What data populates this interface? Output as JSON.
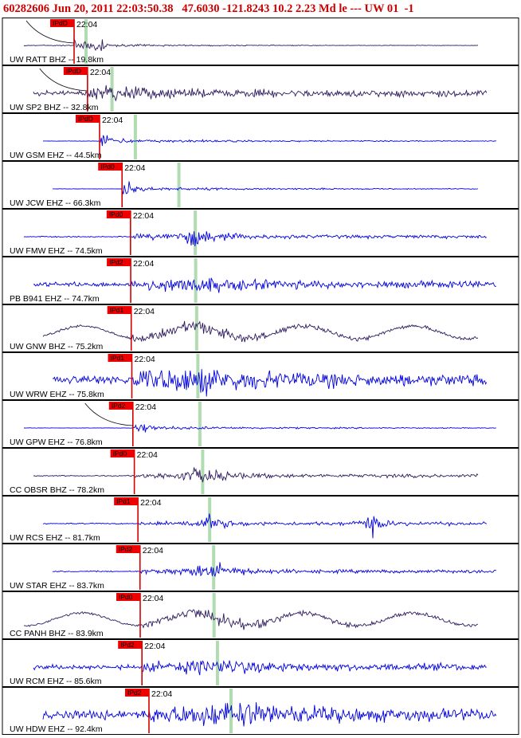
{
  "header": {
    "text": "60282606 Jun 20, 2011 22:03:50.38   47.6030 -121.8243 10.2 2.23 Md le --- UW 01  -1"
  },
  "colors": {
    "header": "#cc0000",
    "vertical_component_trace": "#2e1a5e",
    "short_period_trace": "#0000dd",
    "pick_line": "#d40000",
    "pick_flag": "#ee0000",
    "s_pick_band": "#a8d8a8",
    "travel_time_curve": "#000000"
  },
  "chart_data": {
    "type": "line",
    "title": "60282606 Jun 20, 2011 22:03:50.38   47.6030 -121.8243 10.2 2.23 Md le --- UW 01  -1",
    "time_tick_label": "22:04",
    "traces": [
      {
        "label": "UW RATT BHZ -- 19.8km",
        "distance_km": 19.8,
        "color": "#2e1a5e",
        "pick": "IPdD",
        "style": "rattle"
      },
      {
        "label": "UW SP2 BHZ -- 32.8km",
        "distance_km": 32.8,
        "color": "#2e1a5e",
        "pick": "IPdD",
        "style": "noisy"
      },
      {
        "label": "UW GSM EHZ -- 44.5km",
        "distance_km": 44.5,
        "color": "#0000dd",
        "pick": "IPdD",
        "style": "quiet"
      },
      {
        "label": "UW JCW EHZ -- 66.3km",
        "distance_km": 66.3,
        "color": "#0000dd",
        "pick": "IPd0",
        "style": "quiet"
      },
      {
        "label": "UW FMW EHZ -- 74.5km",
        "distance_km": 74.5,
        "color": "#0000dd",
        "pick": "IPd0",
        "style": "event"
      },
      {
        "label": "PB B941 EHZ -- 74.7km",
        "distance_km": 74.7,
        "color": "#0000dd",
        "pick": "IPd2",
        "style": "noisy"
      },
      {
        "label": "UW GNW BHZ -- 75.2km",
        "distance_km": 75.2,
        "color": "#2e1a5e",
        "pick": "IPd1",
        "style": "swell"
      },
      {
        "label": "UW WRW EHZ -- 75.8km",
        "distance_km": 75.8,
        "color": "#0000dd",
        "pick": "IPd1",
        "style": "loud"
      },
      {
        "label": "UW GPW EHZ -- 76.8km",
        "distance_km": 76.8,
        "color": "#0000dd",
        "pick": "IPd2",
        "style": "quiet"
      },
      {
        "label": "CC OBSR BHZ -- 78.2km",
        "distance_km": 78.2,
        "color": "#2e1a5e",
        "pick": "IPd0",
        "style": "event"
      },
      {
        "label": "UW RCS EHZ -- 81.7km",
        "distance_km": 81.7,
        "color": "#0000dd",
        "pick": "IPd1",
        "style": "burst"
      },
      {
        "label": "UW STAR EHZ -- 83.7km",
        "distance_km": 83.7,
        "color": "#0000dd",
        "pick": "IPd2",
        "style": "event"
      },
      {
        "label": "CC PANH BHZ -- 83.9km",
        "distance_km": 83.9,
        "color": "#2e1a5e",
        "pick": "IPd0",
        "style": "swell"
      },
      {
        "label": "UW RCM EHZ -- 85.6km",
        "distance_km": 85.6,
        "color": "#0000dd",
        "pick": "IPd2",
        "style": "noisy"
      },
      {
        "label": "UW HDW EHZ -- 92.4km",
        "distance_km": 92.4,
        "color": "#0000dd",
        "pick": "IPd2",
        "style": "loud"
      }
    ]
  }
}
